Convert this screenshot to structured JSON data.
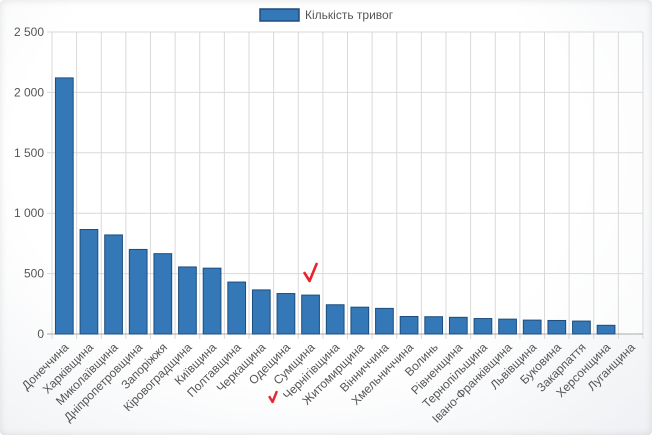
{
  "chart_data": {
    "type": "bar",
    "legend": {
      "label": "Кількість тривог",
      "position": "top-center"
    },
    "series": [
      {
        "name": "Кількість тривог",
        "color": "#3578b8",
        "border_color": "#1d4d7f",
        "values": [
          2120,
          865,
          820,
          700,
          665,
          555,
          545,
          430,
          365,
          335,
          322,
          242,
          222,
          212,
          145,
          143,
          138,
          128,
          123,
          115,
          112,
          107,
          72,
          0
        ]
      }
    ],
    "categories": [
      "Донеччина",
      "Харківщина",
      "Миколаївщина",
      "Дніпропетровщина",
      "Запоріжжя",
      "Кіровоградщина",
      "Київщина",
      "Полтавщина",
      "Черкащина",
      "Одещина",
      "Сумщина",
      "Чернігівщина",
      "Житомирщина",
      "Вінниччина",
      "Хмельниччина",
      "Волинь",
      "Рівненщина",
      "Тернопільщина",
      "Івано-Франківщина",
      "Львівщина",
      "Буковина",
      "Закарпаття",
      "Херсонщина",
      "Луганщина"
    ],
    "y_ticks": [
      "0",
      "500",
      "1 000",
      "1 500",
      "2 000",
      "2 500"
    ],
    "ylim": [
      0,
      2500
    ],
    "grid": true,
    "annotations": [
      {
        "type": "red-checkmark",
        "near_category": "Сумщина",
        "placement": "above-bar"
      },
      {
        "type": "red-checkmark",
        "near_category": "Сумщина",
        "placement": "below-label"
      }
    ]
  }
}
